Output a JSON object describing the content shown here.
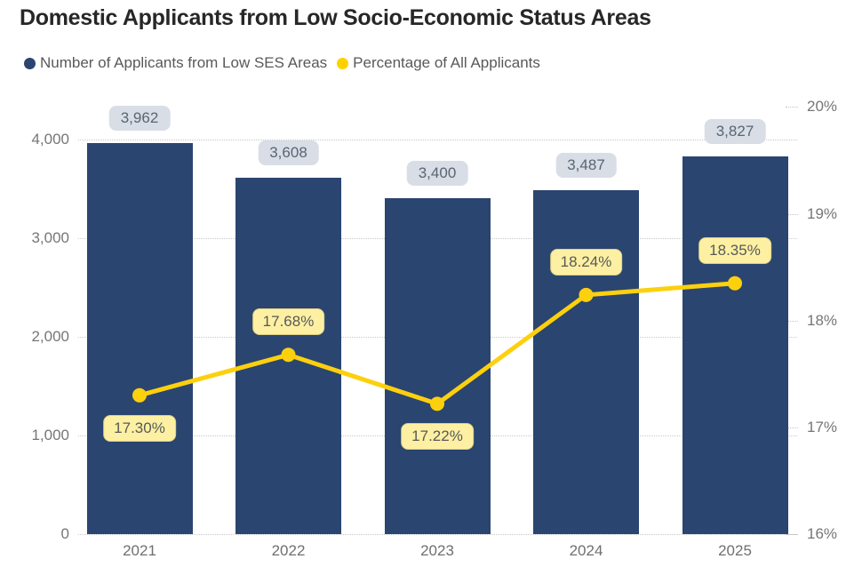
{
  "title": "Domestic Applicants from Low Socio-Economic Status Areas",
  "legend": [
    {
      "label": "Number of Applicants from Low SES Areas",
      "color": "#2a4570"
    },
    {
      "label": "Percentage of All Applicants",
      "color": "#ffd100"
    }
  ],
  "colors": {
    "bar": "#2a4570",
    "line": "#fdd00e",
    "bar_label_bg": "#d8dde6",
    "bar_label_text": "#5a6573",
    "pct_label_bg": "#fdf0a2",
    "pct_label_border": "#ddd083",
    "pct_label_text": "#58595b",
    "axis_text": "#767676",
    "gridline": "#c9c9c9",
    "title_text": "#272727"
  },
  "chart_data": {
    "type": "combo-bar-line",
    "title": "Domestic Applicants from Low Socio-Economic Status Areas",
    "categories": [
      "2021",
      "2022",
      "2023",
      "2024",
      "2025"
    ],
    "series": [
      {
        "name": "Number of Applicants from Low SES Areas",
        "type": "bar",
        "axis": "left",
        "color": "#2a4570",
        "values": [
          3962,
          3608,
          3400,
          3487,
          3827
        ],
        "data_labels": [
          "3,962",
          "3,608",
          "3,400",
          "3,487",
          "3,827"
        ]
      },
      {
        "name": "Percentage of All Applicants",
        "type": "line",
        "axis": "right",
        "color": "#fdd00e",
        "values": [
          17.3,
          17.68,
          17.22,
          18.24,
          18.35
        ],
        "data_labels": [
          "17.30%",
          "17.68%",
          "17.22%",
          "18.24%",
          "18.35%"
        ],
        "label_side": [
          "below",
          "above",
          "below",
          "above",
          "above"
        ]
      }
    ],
    "left_axis": {
      "min": 0,
      "max": 4400,
      "ticks": [
        0,
        1000,
        2000,
        3000,
        4000
      ],
      "tick_labels": [
        "0",
        "1,000",
        "2,000",
        "3,000",
        "4,000"
      ]
    },
    "right_axis": {
      "min": 16,
      "max": 20.07,
      "ticks": [
        16,
        17,
        18,
        19,
        20
      ],
      "tick_labels": [
        "16%",
        "17%",
        "18%",
        "19%",
        "20%"
      ]
    },
    "grid": "horizontal dotted at left-axis ticks",
    "legend_position": "top-left"
  }
}
